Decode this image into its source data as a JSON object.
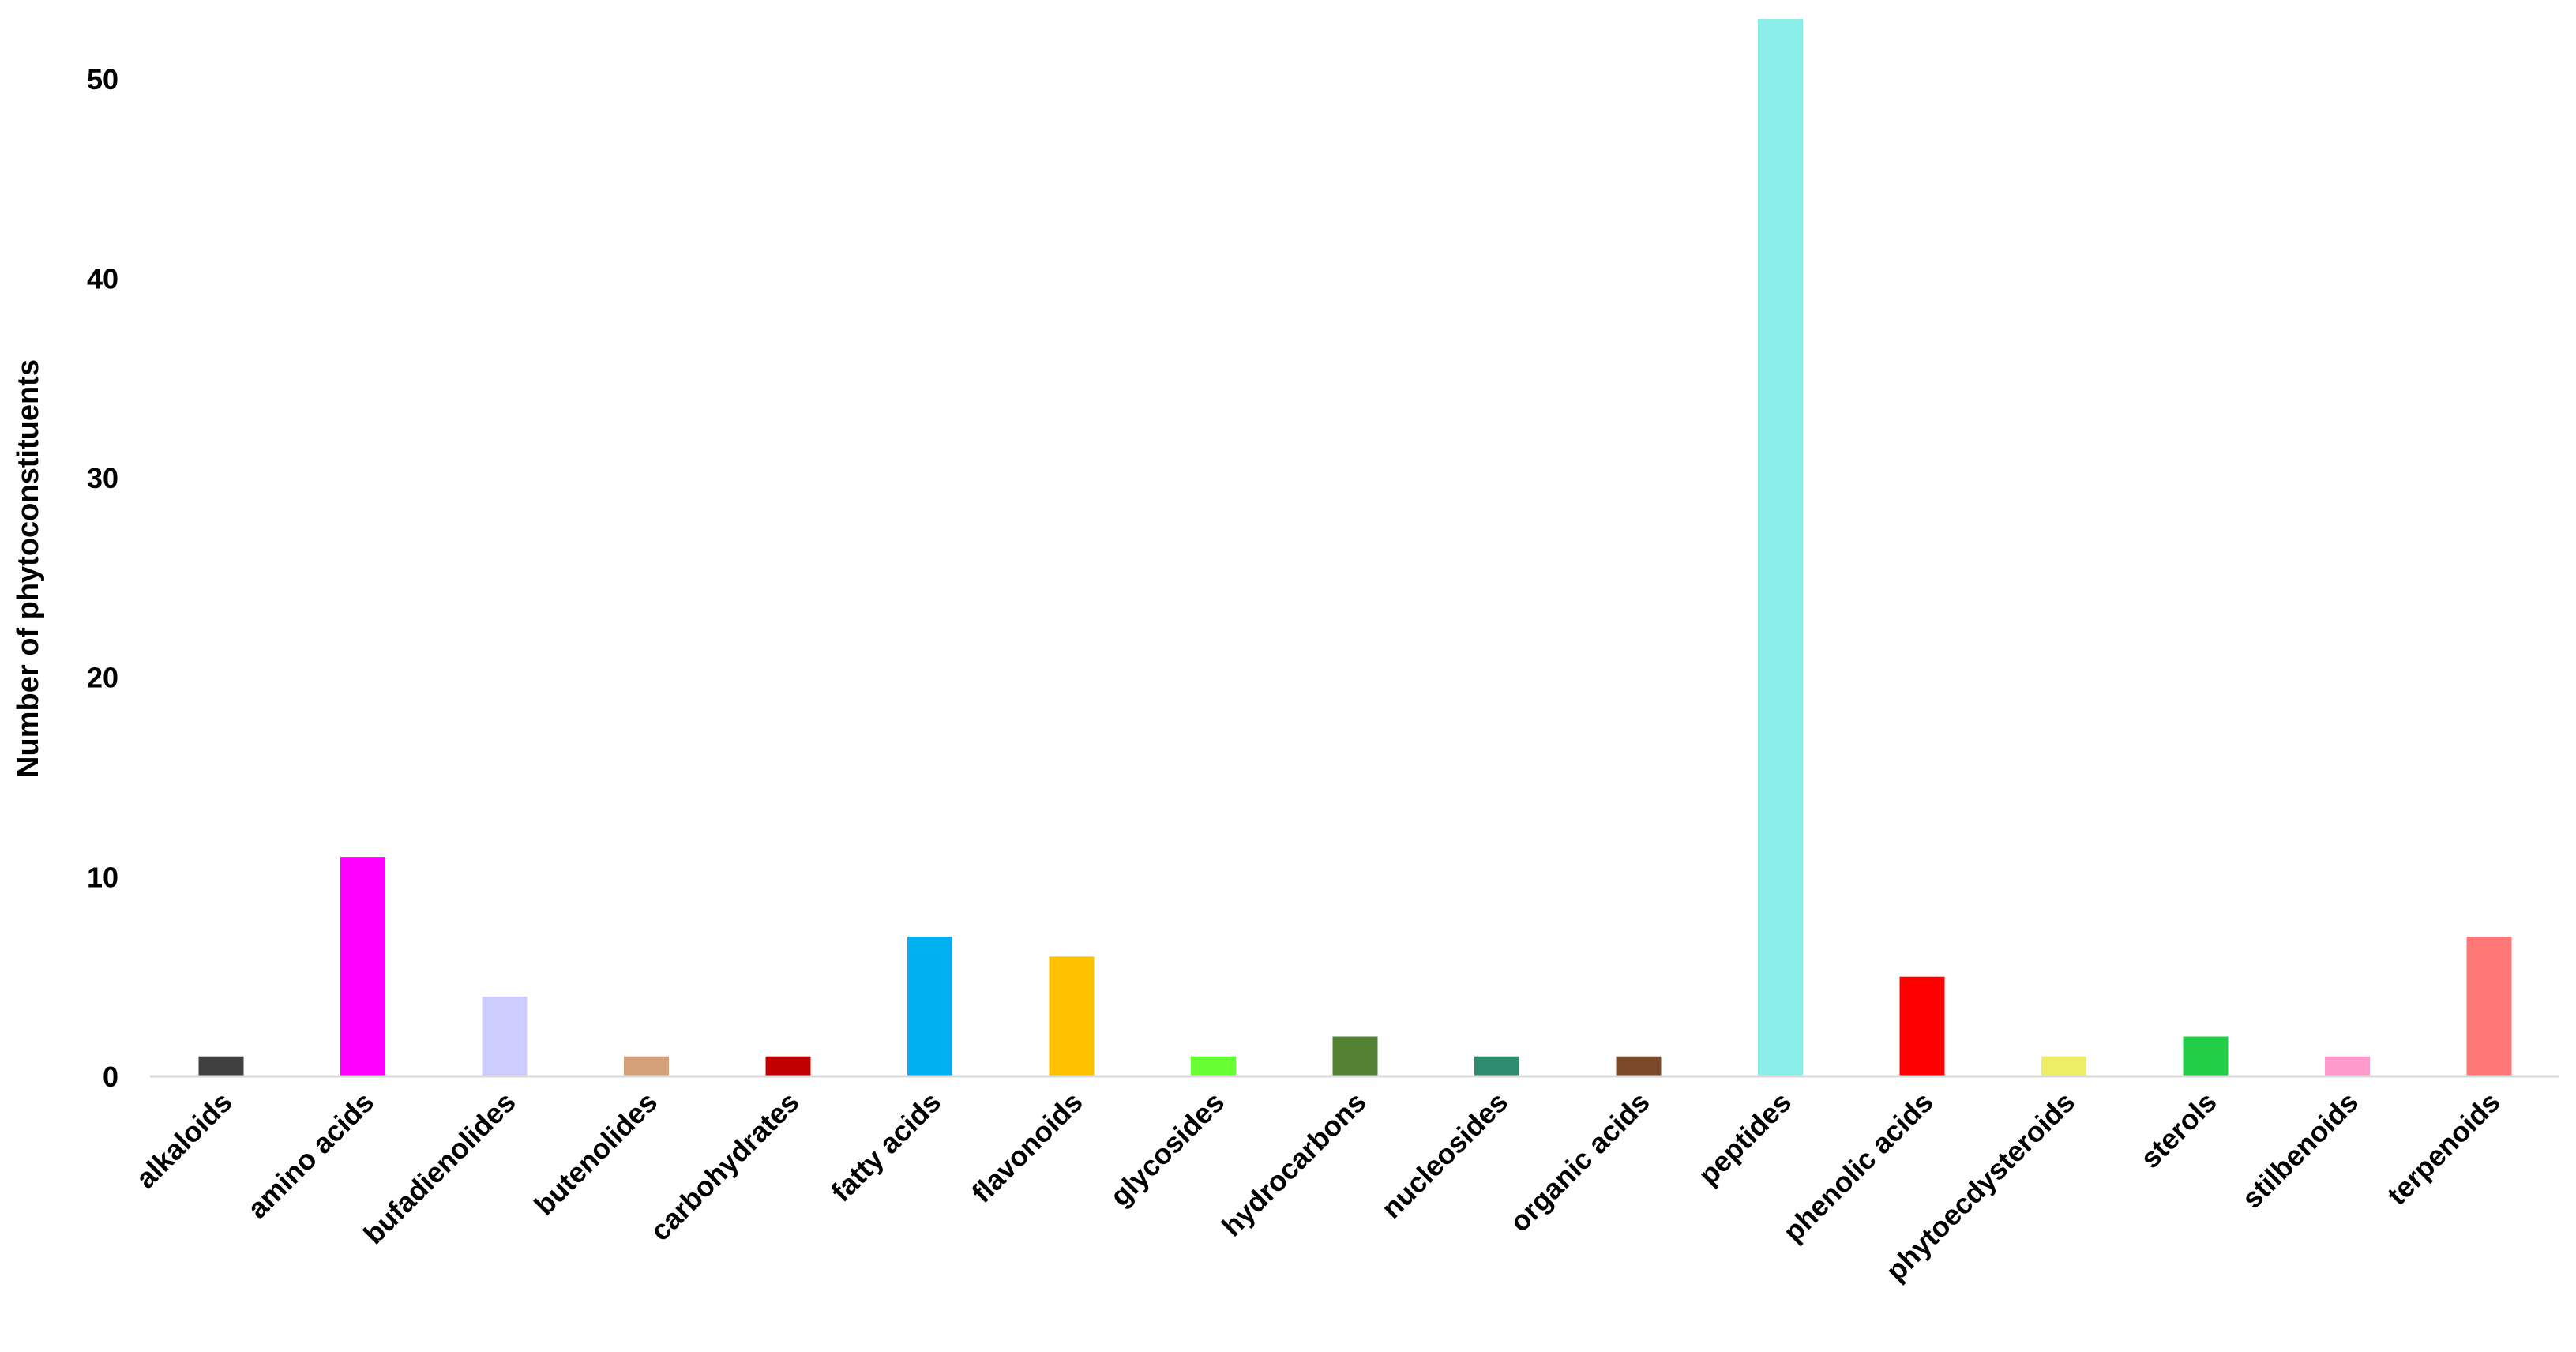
{
  "chart_data": {
    "type": "bar",
    "title": "",
    "xlabel": "",
    "ylabel": "Number of phytoconstituents",
    "ylim": [
      0,
      53
    ],
    "yticks": [
      0,
      10,
      20,
      30,
      40,
      50
    ],
    "grid": false,
    "legend": "none",
    "categories": [
      "alkaloids",
      "amino acids",
      "bufadienolides",
      "butenolides",
      "carbohydrates",
      "fatty acids",
      "flavonoids",
      "glycosides",
      "hydrocarbons",
      "nucleosides",
      "organic acids",
      "peptides",
      "phenolic acids",
      "phytoecdysteroids",
      "sterols",
      "stilbenoids",
      "terpenoids"
    ],
    "values": [
      1,
      11,
      4,
      1,
      1,
      7,
      6,
      1,
      2,
      1,
      1,
      53,
      5,
      1,
      2,
      1,
      7
    ],
    "colors": [
      "#404040",
      "#ff00ff",
      "#ccccff",
      "#d4a07a",
      "#c00000",
      "#00b0f0",
      "#ffc000",
      "#66ff33",
      "#548235",
      "#2e8b6e",
      "#7b4a2a",
      "#8ceee8",
      "#ff0000",
      "#eeee66",
      "#22cc44",
      "#ff99cc",
      "#ff7777"
    ],
    "axis_color": "#d9d9d9"
  }
}
